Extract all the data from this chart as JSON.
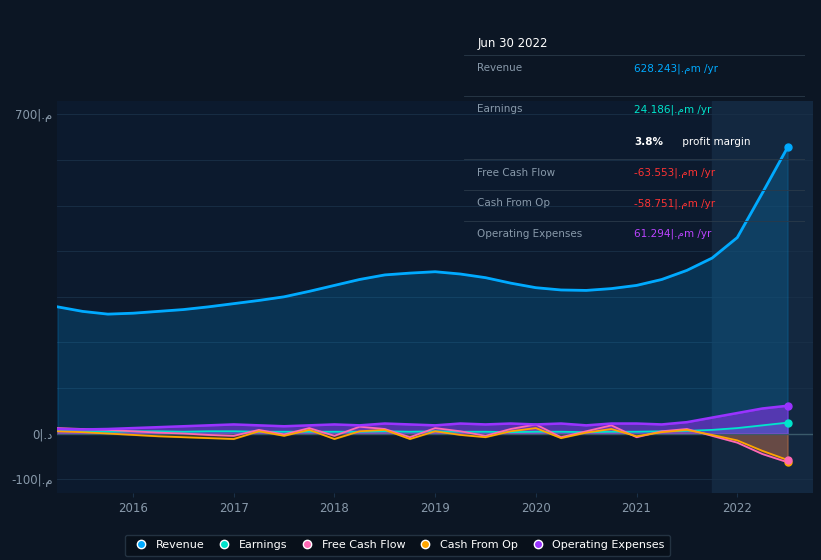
{
  "bg_color": "#0c1624",
  "plot_bg_color": "#0c1a2e",
  "grid_color": "#1a3048",
  "highlight_bg_color": "#132840",
  "title": "Jun 30 2022",
  "ylabel_700": "700|.م",
  "ylabel_0": "0|.د",
  "ylabel_neg100": "-100|.م",
  "revenue_color": "#00aaff",
  "earnings_color": "#00e5cc",
  "fcf_color": "#ff69b4",
  "cfo_color": "#ffa500",
  "opex_color": "#9933ff",
  "zero_line_color": "#3a5a6a",
  "text_color": "#8899aa",
  "white": "#ffffff",
  "tooltip_bg": "#080f18",
  "tooltip_border": "#2a3a4a",
  "rev_value_color": "#00aaff",
  "earn_value_color": "#00e5cc",
  "neg_value_color": "#ff3333",
  "opex_value_color": "#bb44ff",
  "highlight_x_start": 2021.75,
  "highlight_x_end": 2022.75,
  "xlim": [
    2015.25,
    2022.75
  ],
  "ylim": [
    -130,
    730
  ],
  "yticks": [
    700,
    0,
    -100
  ],
  "xticks": [
    2016,
    2017,
    2018,
    2019,
    2020,
    2021,
    2022
  ],
  "quarters": [
    2015.25,
    2015.5,
    2015.75,
    2016.0,
    2016.25,
    2016.5,
    2016.75,
    2017.0,
    2017.25,
    2017.5,
    2017.75,
    2018.0,
    2018.25,
    2018.5,
    2018.75,
    2019.0,
    2019.25,
    2019.5,
    2019.75,
    2020.0,
    2020.25,
    2020.5,
    2020.75,
    2021.0,
    2021.25,
    2021.5,
    2021.75,
    2022.0,
    2022.25,
    2022.5
  ],
  "revenue": [
    278,
    268,
    262,
    264,
    268,
    272,
    278,
    285,
    292,
    300,
    312,
    325,
    338,
    348,
    352,
    355,
    350,
    342,
    330,
    320,
    315,
    314,
    318,
    325,
    338,
    358,
    385,
    430,
    528,
    628
  ],
  "earnings": [
    6,
    5,
    4,
    5,
    5,
    4,
    5,
    5,
    4,
    4,
    4,
    4,
    4,
    5,
    4,
    5,
    4,
    4,
    3,
    4,
    4,
    3,
    4,
    4,
    5,
    6,
    8,
    12,
    18,
    24
  ],
  "fcf": [
    12,
    10,
    8,
    5,
    2,
    0,
    -3,
    -5,
    8,
    -2,
    12,
    -5,
    15,
    10,
    -8,
    12,
    5,
    -5,
    10,
    20,
    -8,
    5,
    18,
    -8,
    5,
    10,
    -5,
    -20,
    -45,
    -63
  ],
  "cfo": [
    5,
    3,
    0,
    -3,
    -6,
    -8,
    -10,
    -12,
    5,
    -5,
    8,
    -12,
    5,
    8,
    -12,
    5,
    -3,
    -8,
    5,
    12,
    -10,
    2,
    10,
    -6,
    3,
    8,
    -3,
    -15,
    -38,
    -58
  ],
  "opex": [
    10,
    9,
    10,
    12,
    14,
    16,
    18,
    20,
    18,
    16,
    18,
    20,
    18,
    22,
    20,
    18,
    22,
    20,
    22,
    20,
    22,
    18,
    22,
    22,
    20,
    25,
    35,
    45,
    55,
    61
  ],
  "legend_items": [
    {
      "label": "Revenue",
      "color": "#00aaff"
    },
    {
      "label": "Earnings",
      "color": "#00e5cc"
    },
    {
      "label": "Free Cash Flow",
      "color": "#ff69b4"
    },
    {
      "label": "Cash From Op",
      "color": "#ffa500"
    },
    {
      "label": "Operating Expenses",
      "color": "#9933ff"
    }
  ]
}
